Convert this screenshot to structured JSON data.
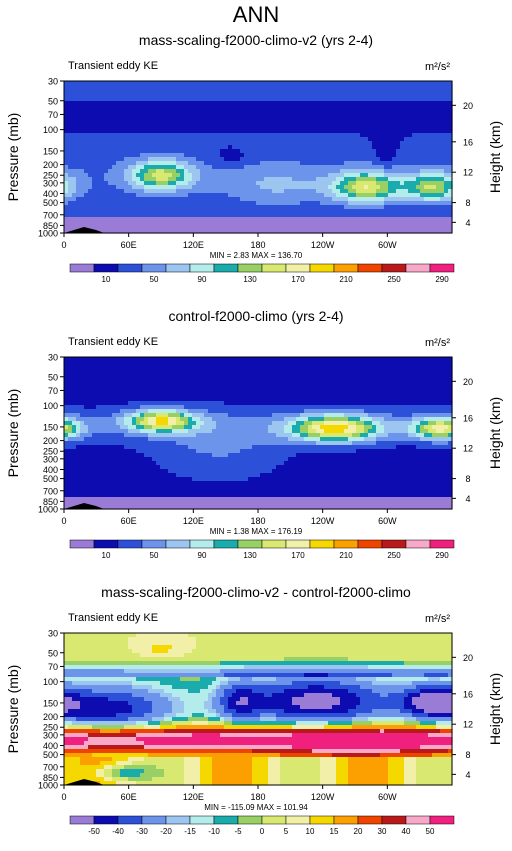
{
  "figure": {
    "title": "ANN"
  },
  "chart_data": [
    {
      "type": "contour",
      "title": "mass-scaling-f2000-climo-v2 (yrs 2-4)",
      "variable": "Transient eddy KE",
      "units": "m²/s²",
      "ylabel": "Pressure (mb)",
      "ylabel_right": "Height (km)",
      "x_ticks": [
        "0",
        "60E",
        "120E",
        "180",
        "120W",
        "60W"
      ],
      "y_ticks": [
        30,
        50,
        70,
        100,
        150,
        200,
        250,
        300,
        400,
        500,
        700,
        850,
        1000
      ],
      "height_ticks": [
        20,
        16,
        12,
        8,
        4
      ],
      "stats": {
        "min_label": "MIN =",
        "min": "2.83",
        "max_label": "MAX =",
        "max": "136.70"
      },
      "colorbar": {
        "labels": [
          "10",
          "50",
          "90",
          "130",
          "170",
          "210",
          "250",
          "290"
        ],
        "colors": [
          "#9a7bd6",
          "#0c0cb0",
          "#2d50d8",
          "#6c94ea",
          "#9cc6f0",
          "#b4ecec",
          "#1aacac",
          "#99d066",
          "#d8e870",
          "#f2f0a8",
          "#f5d800",
          "#fba000",
          "#ee4400",
          "#b81a1a",
          "#f8a8c8",
          "#f0207e"
        ]
      },
      "field": "ke_v2"
    },
    {
      "type": "contour",
      "title": "control-f2000-climo (yrs 2-4)",
      "variable": "Transient eddy KE",
      "units": "m²/s²",
      "ylabel": "Pressure (mb)",
      "ylabel_right": "Height (km)",
      "x_ticks": [
        "0",
        "60E",
        "120E",
        "180",
        "120W",
        "60W"
      ],
      "y_ticks": [
        30,
        50,
        70,
        100,
        150,
        200,
        250,
        300,
        400,
        500,
        700,
        850,
        1000
      ],
      "height_ticks": [
        20,
        16,
        12,
        8,
        4
      ],
      "stats": {
        "min_label": "MIN =",
        "min": "1.38",
        "max_label": "MAX =",
        "max": "176.19"
      },
      "colorbar": {
        "labels": [
          "10",
          "50",
          "90",
          "130",
          "170",
          "210",
          "250",
          "290"
        ],
        "colors": [
          "#9a7bd6",
          "#0c0cb0",
          "#2d50d8",
          "#6c94ea",
          "#9cc6f0",
          "#b4ecec",
          "#1aacac",
          "#99d066",
          "#d8e870",
          "#f2f0a8",
          "#f5d800",
          "#fba000",
          "#ee4400",
          "#b81a1a",
          "#f8a8c8",
          "#f0207e"
        ]
      },
      "field": "ke_ctrl"
    },
    {
      "type": "contour",
      "title": "mass-scaling-f2000-climo-v2 - control-f2000-climo",
      "variable": "Transient eddy KE",
      "units": "m²/s²",
      "ylabel": "Pressure (mb)",
      "ylabel_right": "Height (km)",
      "x_ticks": [
        "0",
        "60E",
        "120E",
        "180",
        "120W",
        "60W"
      ],
      "y_ticks": [
        30,
        50,
        70,
        100,
        150,
        200,
        250,
        300,
        400,
        500,
        700,
        850,
        1000
      ],
      "height_ticks": [
        20,
        16,
        12,
        8,
        4
      ],
      "stats": {
        "min_label": "MIN =",
        "min": "-115.09",
        "max_label": "MAX =",
        "max": "101.94"
      },
      "colorbar": {
        "labels": [
          "-50",
          "-40",
          "-30",
          "-20",
          "-15",
          "-10",
          "-5",
          "0",
          "5",
          "10",
          "15",
          "20",
          "30",
          "40",
          "50"
        ],
        "colors": [
          "#9a7bd6",
          "#0c0cb0",
          "#2d50d8",
          "#6c94ea",
          "#9cc6f0",
          "#b4ecec",
          "#1aacac",
          "#99d066",
          "#d8e870",
          "#f2f0a8",
          "#f5d800",
          "#fba000",
          "#ee4400",
          "#b81a1a",
          "#f8a8c8",
          "#f0207e"
        ]
      },
      "field": "ke_diff"
    }
  ]
}
